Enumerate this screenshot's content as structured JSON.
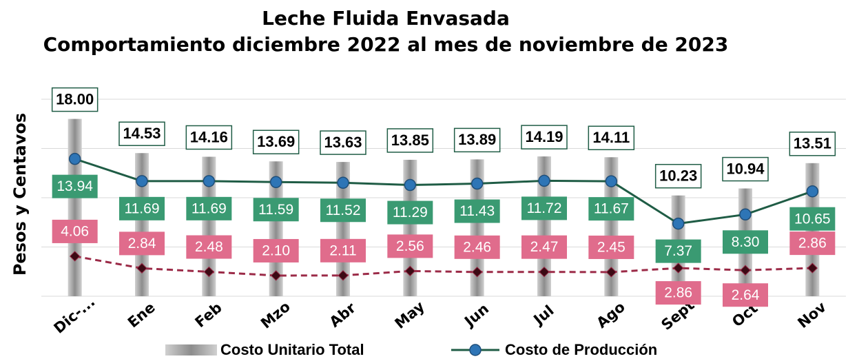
{
  "chart_data": {
    "type": "bar-line",
    "title": "Leche Fluida Envasada",
    "subtitle": "Comportamiento diciembre 2022 al mes de noviembre de 2023",
    "y_label": "Pesos y Centavos",
    "categories": [
      "Dic-...",
      "Ene",
      "Feb",
      "Mzo",
      "Abr",
      "May",
      "Jun",
      "Jul",
      "Ago",
      "Sept",
      "Oct",
      "Nov"
    ],
    "ylim": [
      0,
      20
    ],
    "yticks": [
      0,
      5,
      10,
      15,
      20
    ],
    "grid": true,
    "series": [
      {
        "name": "Costo Unitario Total",
        "type": "bar",
        "color": "#a6a6a6",
        "values": [
          18,
          14.53,
          14.16,
          13.69,
          13.63,
          13.85,
          13.89,
          14.19,
          14.11,
          10.23,
          10.94,
          13.51
        ],
        "value_labels": [
          "18.00",
          "14.53",
          "14.16",
          "13.69",
          "13.63",
          "13.85",
          "13.89",
          "14.19",
          "14.11",
          "10.23",
          "10.94",
          "13.51"
        ]
      },
      {
        "name": "Costo de Producción",
        "type": "line",
        "color": "#1f5c45",
        "values": [
          13.94,
          11.69,
          11.69,
          11.59,
          11.52,
          11.29,
          11.43,
          11.72,
          11.67,
          7.37,
          8.3,
          10.65
        ],
        "value_labels": [
          "13.94",
          "11.69",
          "11.69",
          "11.59",
          "11.52",
          "11.29",
          "11.43",
          "11.72",
          "11.67",
          "7.37",
          "8.30",
          "10.65"
        ]
      },
      {
        "type": "dashed",
        "color": "#9b2a47",
        "values": [
          4.06,
          2.84,
          2.48,
          2.1,
          2.11,
          2.56,
          2.46,
          2.47,
          2.45,
          2.86,
          2.64,
          2.86
        ],
        "value_labels": [
          "4.06",
          "2.84",
          "2.48",
          "2.10",
          "2.11",
          "2.56",
          "2.46",
          "2.47",
          "2.45",
          "2.86",
          "2.64",
          "2.86"
        ]
      }
    ]
  }
}
